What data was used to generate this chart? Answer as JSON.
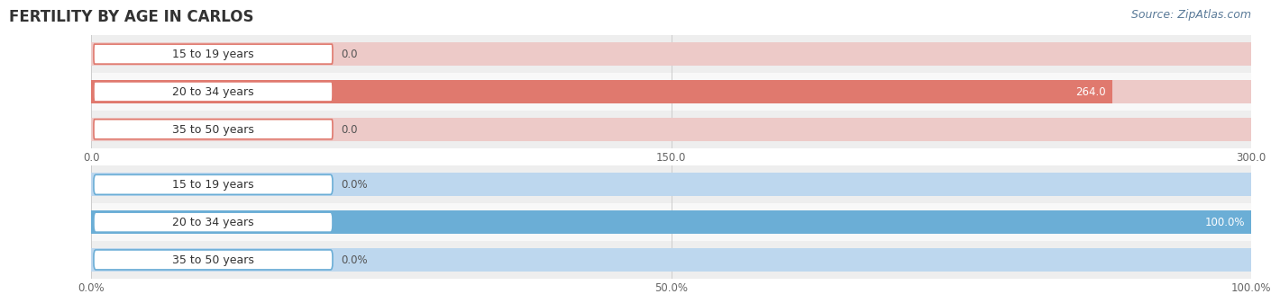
{
  "title": "FERTILITY BY AGE IN CARLOS",
  "source": "Source: ZipAtlas.com",
  "top_chart": {
    "categories": [
      "15 to 19 years",
      "20 to 34 years",
      "35 to 50 years"
    ],
    "values": [
      0.0,
      264.0,
      0.0
    ],
    "bar_color": "#E0796E",
    "bar_bg_color": "#EDCAC8",
    "xlim": [
      0,
      300.0
    ],
    "xticks": [
      0.0,
      150.0,
      300.0
    ],
    "xtick_labels": [
      "0.0",
      "150.0",
      "300.0"
    ],
    "value_labels": [
      "0.0",
      "264.0",
      "0.0"
    ]
  },
  "bottom_chart": {
    "categories": [
      "15 to 19 years",
      "20 to 34 years",
      "35 to 50 years"
    ],
    "values": [
      0.0,
      100.0,
      0.0
    ],
    "bar_color": "#6BAED6",
    "bar_bg_color": "#BDD7EE",
    "xlim": [
      0,
      100.0
    ],
    "xticks": [
      0.0,
      50.0,
      100.0
    ],
    "xtick_labels": [
      "0.0%",
      "50.0%",
      "100.0%"
    ],
    "value_labels": [
      "0.0%",
      "100.0%",
      "0.0%"
    ]
  },
  "label_box_bg": "#FFFFFF",
  "label_box_edge_top": "#E0796E",
  "label_box_edge_bottom": "#6BAED6",
  "row_bg_odd": "#EEEEEE",
  "row_bg_even": "#F8F8F8",
  "background_color": "#FFFFFF",
  "title_fontsize": 12,
  "label_fontsize": 9,
  "tick_fontsize": 8.5,
  "value_fontsize": 8.5,
  "source_fontsize": 9
}
